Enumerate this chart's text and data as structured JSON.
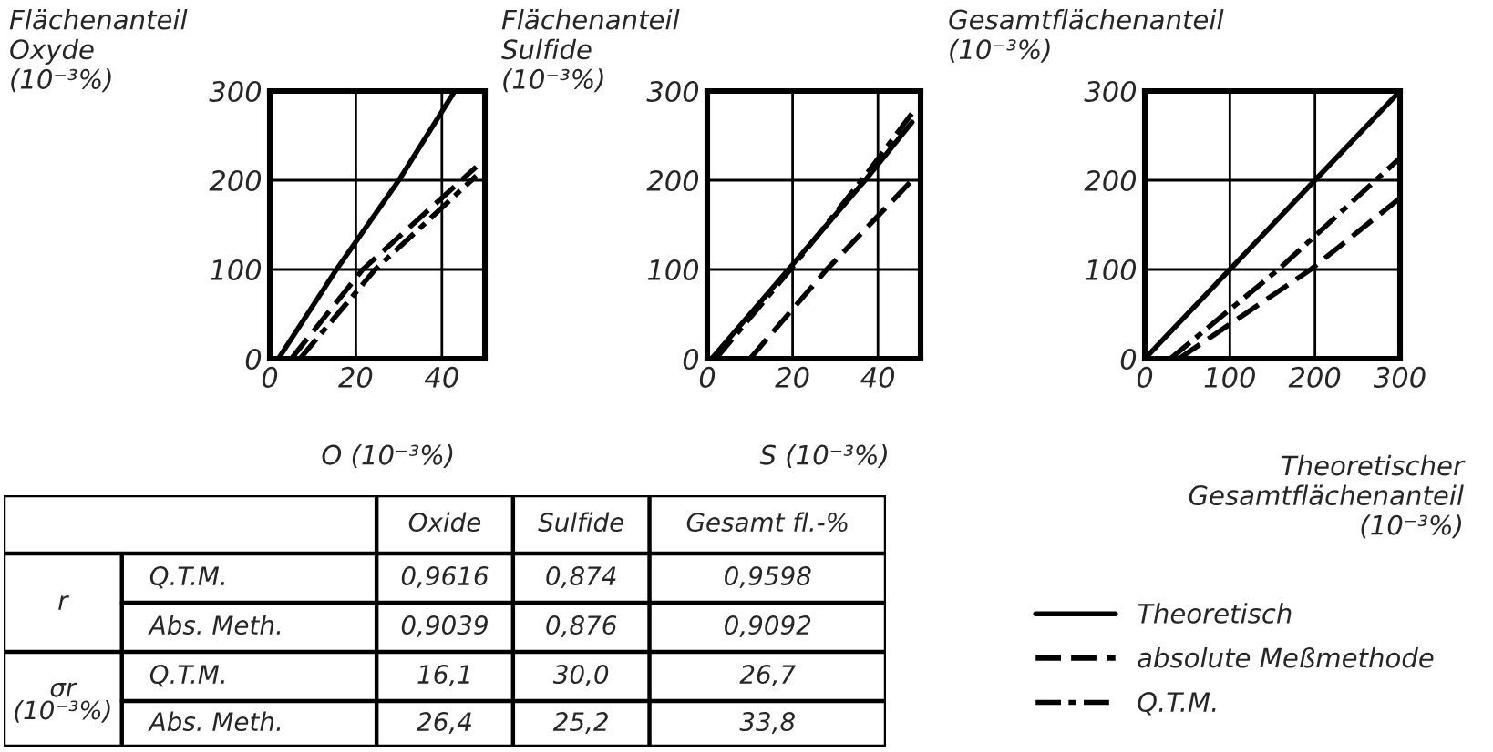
{
  "chart_data": [
    {
      "type": "line",
      "ylabel": "Flächenanteil\nOxyde\n(10⁻³%)",
      "xlabel": "O (10⁻³%)",
      "xlim": [
        0,
        50
      ],
      "ylim": [
        0,
        300
      ],
      "xticks": [
        0,
        20,
        40
      ],
      "yticks": [
        0,
        100,
        200,
        300
      ],
      "grid": true,
      "legend": false,
      "series": [
        {
          "color": "#000000",
          "line_style": "solid",
          "x": [
            2,
            15.5,
            30,
            43
          ],
          "values": [
            0,
            100,
            200,
            300
          ]
        },
        {
          "color": "#000000",
          "line_style": "dashed",
          "x": [
            5,
            21.6,
            48
          ],
          "values": [
            0,
            100,
            215
          ]
        },
        {
          "color": "#000000",
          "line_style": "dashdot",
          "x": [
            7,
            24.5,
            48
          ],
          "values": [
            0,
            100,
            205
          ]
        }
      ]
    },
    {
      "type": "line",
      "ylabel": "Flächenanteil\nSulfide\n(10⁻³%)",
      "xlabel": "S (10⁻³%)",
      "xlim": [
        0,
        50
      ],
      "ylim": [
        0,
        300
      ],
      "xticks": [
        0,
        20,
        40
      ],
      "yticks": [
        0,
        100,
        200,
        300
      ],
      "grid": true,
      "legend": false,
      "series": [
        {
          "color": "#000000",
          "line_style": "solid",
          "x": [
            1,
            19,
            37,
            48
          ],
          "values": [
            0,
            100,
            200,
            265
          ]
        },
        {
          "color": "#000000",
          "line_style": "dashed",
          "x": [
            10,
            28,
            48
          ],
          "values": [
            0,
            100,
            200
          ]
        },
        {
          "color": "#000000",
          "line_style": "dashdot",
          "x": [
            2,
            19.5,
            37,
            48
          ],
          "values": [
            0,
            100,
            205,
            275
          ]
        }
      ]
    },
    {
      "type": "line",
      "ylabel": "Gesamtflächenanteil\n(10⁻³%)",
      "xlabel": "Theoretischer\nGesamtflächenanteil\n(10⁻³%)",
      "xlim": [
        0,
        300
      ],
      "ylim": [
        0,
        300
      ],
      "xticks": [
        0,
        100,
        200,
        300
      ],
      "yticks": [
        0,
        100,
        200,
        300
      ],
      "grid": true,
      "legend": "bottom",
      "series": [
        {
          "name": "Theoretisch",
          "color": "#000000",
          "line_style": "solid",
          "x": [
            0,
            100,
            200,
            300
          ],
          "values": [
            0,
            100,
            200,
            300
          ]
        },
        {
          "name": "absolute Meßmethode",
          "color": "#000000",
          "line_style": "dashed",
          "x": [
            40,
            195,
            300
          ],
          "values": [
            0,
            100,
            180
          ]
        },
        {
          "name": "Q.T.M.",
          "color": "#000000",
          "line_style": "dashdot",
          "x": [
            30,
            157,
            300
          ],
          "values": [
            0,
            100,
            225
          ]
        }
      ]
    },
    {
      "type": "other",
      "annotations": [
        "Oxide",
        "Sulfide",
        "Gesamt fl.-%",
        "r",
        "σr\n(10⁻³%)",
        "Q.T.M.",
        "Abs. Meth.",
        "Q.T.M.",
        "Abs. Meth.",
        "0,9616",
        "0,874",
        "0,9598",
        "0,9039",
        "0,876",
        "0,9092",
        "16,1",
        "30,0",
        "26,7",
        "26,4",
        "25,2",
        "33,8"
      ]
    }
  ]
}
